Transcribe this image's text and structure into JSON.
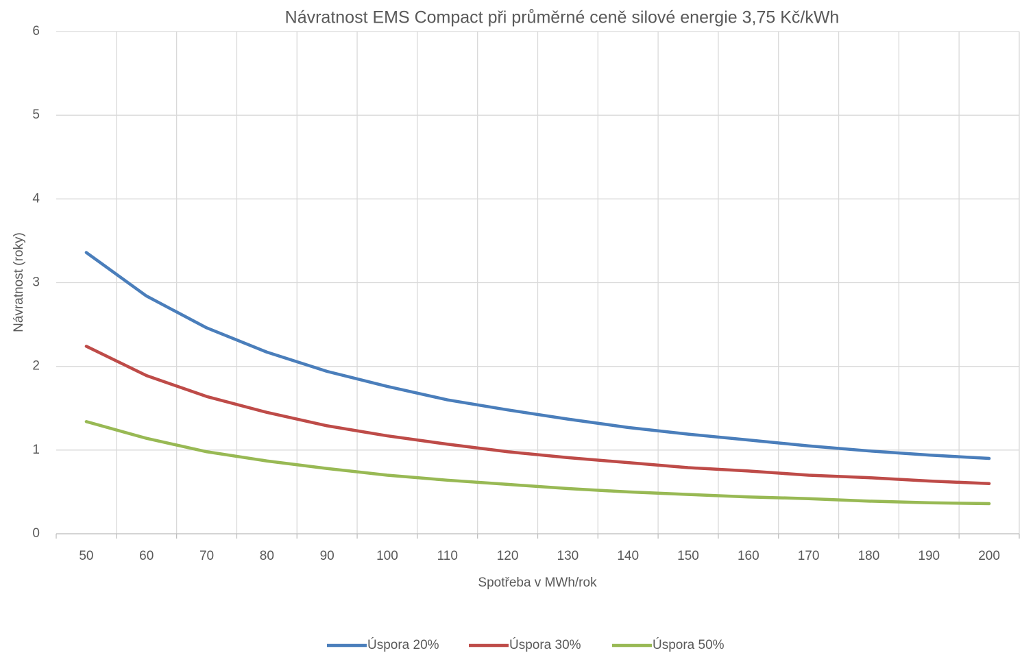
{
  "chart_data": {
    "type": "line",
    "title": "Návratnost EMS Compact při průměrné ceně silové energie 3,75 Kč/kWh",
    "x_label": "Spotřeba v MWh/rok",
    "y_label": "Návratnost (roky)",
    "categories": [
      50,
      60,
      70,
      80,
      90,
      100,
      110,
      120,
      130,
      140,
      150,
      160,
      170,
      180,
      190,
      200
    ],
    "series": [
      {
        "name": "Úspora 20%",
        "color": "#4a7ebb",
        "values": [
          3.36,
          2.84,
          2.46,
          2.17,
          1.94,
          1.76,
          1.6,
          1.48,
          1.37,
          1.27,
          1.19,
          1.12,
          1.05,
          0.99,
          0.94,
          0.9
        ]
      },
      {
        "name": "Úspora 30%",
        "color": "#be4b48",
        "values": [
          2.24,
          1.89,
          1.64,
          1.45,
          1.29,
          1.17,
          1.07,
          0.98,
          0.91,
          0.85,
          0.79,
          0.75,
          0.7,
          0.67,
          0.63,
          0.6
        ]
      },
      {
        "name": "Úspora 50%",
        "color": "#98b954",
        "values": [
          1.34,
          1.14,
          0.98,
          0.87,
          0.78,
          0.7,
          0.64,
          0.59,
          0.54,
          0.5,
          0.47,
          0.44,
          0.42,
          0.39,
          0.37,
          0.36
        ]
      }
    ],
    "ylim": [
      0,
      6
    ],
    "yticks": [
      0,
      1,
      2,
      3,
      4,
      5,
      6
    ],
    "grid": true,
    "legend": "bottom"
  }
}
